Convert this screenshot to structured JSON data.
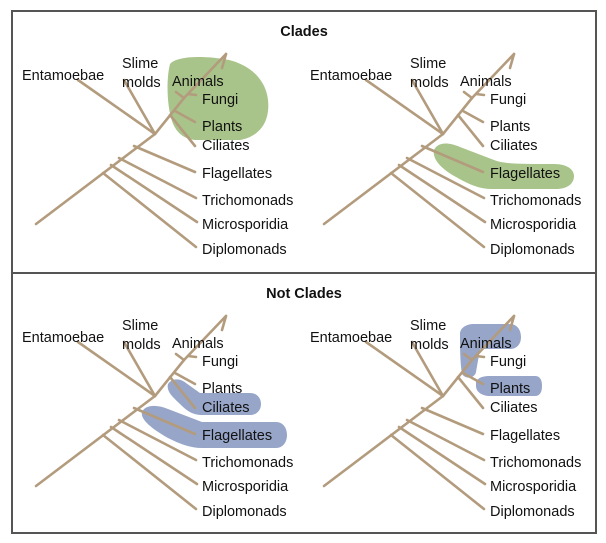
{
  "sections": [
    {
      "title": "Clades"
    },
    {
      "title": "Not Clades"
    }
  ],
  "taxa": {
    "entamoebae": "Entamoebae",
    "slime_molds_line1": "Slime",
    "slime_molds_line2": "molds",
    "animals": "Animals",
    "fungi": "Fungi",
    "plants": "Plants",
    "ciliates": "Ciliates",
    "flagellates": "Flagellates",
    "trichomonads": "Trichomonads",
    "microsporidia": "Microsporidia",
    "diplomonads": "Diplomonads"
  },
  "colors": {
    "branch": "#b39b7d",
    "clade_highlight": "#a9c48a",
    "not_clade_highlight": "#97a6c8",
    "border": "#555555",
    "text": "#111111"
  },
  "trees": [
    {
      "panel": "clades-left",
      "highlights": [
        {
          "group": [
            "animals",
            "fungi",
            "plants"
          ],
          "style": "clade"
        }
      ]
    },
    {
      "panel": "clades-right",
      "highlights": [
        {
          "group": [
            "flagellates"
          ],
          "style": "clade"
        }
      ]
    },
    {
      "panel": "not-clades-left",
      "highlights": [
        {
          "group": [
            "ciliates",
            "flagellates"
          ],
          "style": "not_clade"
        }
      ]
    },
    {
      "panel": "not-clades-right",
      "highlights": [
        {
          "group": [
            "animals"
          ],
          "style": "not_clade"
        },
        {
          "group": [
            "plants"
          ],
          "style": "not_clade"
        }
      ]
    }
  ]
}
